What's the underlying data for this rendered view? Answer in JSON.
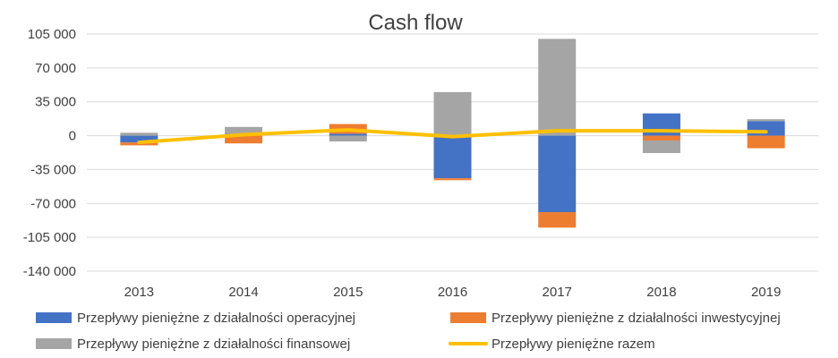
{
  "chart_data": {
    "type": "bar",
    "stacked": true,
    "title": "Cash flow",
    "categories": [
      "2013",
      "2014",
      "2015",
      "2016",
      "2017",
      "2018",
      "2019"
    ],
    "yticks": [
      "105 000",
      "70 000",
      "35 000",
      "0",
      "-35 000",
      "-70 000",
      "-105 000",
      "-140 000"
    ],
    "ylim": [
      -140000,
      105000
    ],
    "grid": true,
    "legend_position": "bottom",
    "series": [
      {
        "name": "Przepływy pieniężne z działalności operacyjnej",
        "kind": "bar",
        "color": "#4472C4",
        "values": [
          -7000,
          2000,
          2000,
          -44000,
          -79000,
          23000,
          15000
        ]
      },
      {
        "name": "Przepływy pieniężne z działalności inwestycyjnej",
        "kind": "bar",
        "color": "#ED7D31",
        "values": [
          -3000,
          -8000,
          10000,
          -2000,
          -16000,
          -5000,
          -13000
        ]
      },
      {
        "name": "Przepływy pieniężne z działalności finansowej",
        "kind": "bar",
        "color": "#A5A5A5",
        "values": [
          3000,
          7000,
          -6000,
          45000,
          100000,
          -13000,
          2000
        ]
      },
      {
        "name": "Przepływy pieniężne razem",
        "kind": "line",
        "color": "#FFC000",
        "values": [
          -7000,
          1000,
          6000,
          -1000,
          5000,
          5000,
          4000
        ]
      }
    ]
  }
}
